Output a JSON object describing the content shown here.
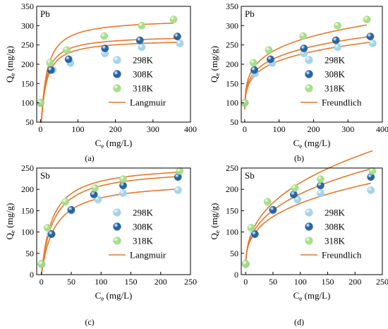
{
  "chart_data": [
    {
      "type": "scatter",
      "panel": "(a)",
      "element": "Pb",
      "xlabel": "C",
      "xlabel_sub": "e",
      "xlabel_unit": " (mg/L)",
      "ylabel": "Q",
      "ylabel_sub": "e",
      "ylabel_unit": " (mg/g)",
      "xlim": [
        -10,
        400
      ],
      "ylim": [
        50,
        350
      ],
      "xticks": [
        0,
        100,
        200,
        300,
        400
      ],
      "yticks": [
        50,
        100,
        150,
        200,
        250,
        300,
        350
      ],
      "legend": [
        "298K",
        "308K",
        "318K"
      ],
      "fit_label": "Langmuir",
      "fit_model": "langmuir",
      "series": [
        {
          "name": "298K",
          "color": "#9fd2ec",
          "x": [
            0,
            33,
            80,
            172,
            270,
            372
          ],
          "y": [
            100,
            185,
            203,
            228,
            244,
            254
          ],
          "fit": {
            "qm": 265,
            "k": 0.085
          }
        },
        {
          "name": "308K",
          "color": "#1f5f9e",
          "x": [
            0,
            28,
            75,
            172,
            265,
            365
          ],
          "y": [
            100,
            185,
            213,
            241,
            262,
            272
          ],
          "fit": {
            "qm": 275,
            "k": 0.09
          }
        },
        {
          "name": "318K",
          "color": "#a5dd86",
          "x": [
            0,
            25,
            70,
            170,
            270,
            355
          ],
          "y": [
            100,
            204,
            237,
            273,
            300,
            316
          ],
          "fit": {
            "qm": 318,
            "k": 0.075
          }
        }
      ]
    },
    {
      "type": "scatter",
      "panel": "(b)",
      "element": "Pb",
      "xlabel": "C",
      "xlabel_sub": "e",
      "xlabel_unit": " (mg/L)",
      "ylabel": "Q",
      "ylabel_sub": "e",
      "ylabel_unit": " (mg/g)",
      "xlim": [
        -10,
        400
      ],
      "ylim": [
        50,
        350
      ],
      "xticks": [
        0,
        100,
        200,
        300,
        400
      ],
      "yticks": [
        50,
        100,
        150,
        200,
        250,
        300,
        350
      ],
      "legend": [
        "298K",
        "308K",
        "318K"
      ],
      "fit_label": "Freundlich",
      "fit_model": "freundlich",
      "series": [
        {
          "name": "298K",
          "color": "#9fd2ec",
          "x": [
            0,
            30,
            80,
            172,
            270,
            372
          ],
          "y": [
            100,
            176,
            203,
            228,
            244,
            254
          ],
          "fit": {
            "kf": 100,
            "n": 0.16
          }
        },
        {
          "name": "308K",
          "color": "#1f5f9e",
          "x": [
            0,
            28,
            75,
            172,
            265,
            365
          ],
          "y": [
            100,
            185,
            213,
            241,
            262,
            272
          ],
          "fit": {
            "kf": 104,
            "n": 0.163
          }
        },
        {
          "name": "318K",
          "color": "#a5dd86",
          "x": [
            0,
            25,
            70,
            170,
            270,
            355
          ],
          "y": [
            100,
            204,
            237,
            273,
            300,
            316
          ],
          "fit": {
            "kf": 108,
            "n": 0.175
          }
        }
      ]
    },
    {
      "type": "scatter",
      "panel": "(c)",
      "element": "Sb",
      "xlabel": "C",
      "xlabel_sub": "e",
      "xlabel_unit": " (mg/L)",
      "ylabel": "Q",
      "ylabel_sub": "e",
      "ylabel_unit": " (mg/g)",
      "xlim": [
        -8,
        250
      ],
      "ylim": [
        0,
        250
      ],
      "xticks": [
        0,
        50,
        100,
        150,
        200,
        250
      ],
      "yticks": [
        0,
        50,
        100,
        150,
        200,
        250
      ],
      "legend": [
        "298K",
        "308K",
        "318K"
      ],
      "fit_label": "Langmuir",
      "fit_model": "langmuir",
      "series": [
        {
          "name": "298K",
          "color": "#9fd2ec",
          "x": [
            0,
            15,
            50,
            95,
            137,
            229
          ],
          "y": [
            25,
            96,
            150,
            176,
            191,
            198
          ],
          "fit": {
            "qm": 220,
            "k": 0.045
          }
        },
        {
          "name": "308K",
          "color": "#1f5f9e",
          "x": [
            0,
            17,
            50,
            88,
            137,
            229
          ],
          "y": [
            25,
            95,
            152,
            188,
            209,
            229
          ],
          "fit": {
            "qm": 250,
            "k": 0.05
          }
        },
        {
          "name": "318K",
          "color": "#a5dd86",
          "x": [
            0,
            10,
            40,
            90,
            137,
            232
          ],
          "y": [
            25,
            110,
            171,
            203,
            224,
            243
          ],
          "fit": {
            "qm": 259,
            "k": 0.055
          }
        }
      ]
    },
    {
      "type": "scatter",
      "panel": "(d)",
      "element": "Sb",
      "xlabel": "C",
      "xlabel_sub": "e",
      "xlabel_unit": " (mg/L)",
      "ylabel": "Q",
      "ylabel_sub": "e",
      "ylabel_unit": " (mg/g)",
      "xlim": [
        -8,
        250
      ],
      "ylim": [
        0,
        250
      ],
      "xticks": [
        0,
        50,
        100,
        150,
        200,
        250
      ],
      "yticks": [
        0,
        50,
        100,
        150,
        200,
        250
      ],
      "legend": [
        "298K",
        "308K",
        "318K"
      ],
      "fit_label": "Freundlich",
      "fit_model": "freundlich",
      "series": [
        {
          "name": "298K",
          "color": "#9fd2ec",
          "x": [
            0,
            15,
            50,
            95,
            137,
            229
          ],
          "y": [
            25,
            96,
            150,
            176,
            191,
            198
          ],
          "fit": {
            "kf": 42,
            "n": 0.3
          }
        },
        {
          "name": "308K",
          "color": "#1f5f9e",
          "x": [
            0,
            17,
            50,
            88,
            137,
            229
          ],
          "y": [
            25,
            95,
            152,
            188,
            209,
            229
          ],
          "fit": {
            "kf": 42,
            "n": 0.327
          }
        },
        {
          "name": "318K",
          "color": "#a5dd86",
          "x": [
            0,
            10,
            40,
            90,
            137,
            232
          ],
          "y": [
            25,
            110,
            171,
            203,
            224,
            243
          ],
          "fit": {
            "kf": 42,
            "n": 0.355
          }
        }
      ]
    }
  ]
}
